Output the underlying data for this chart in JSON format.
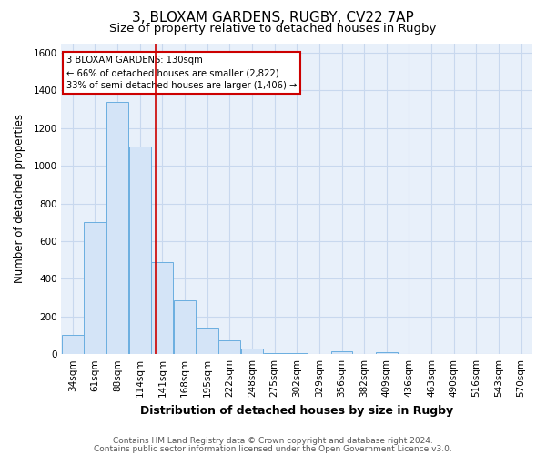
{
  "title1": "3, BLOXAM GARDENS, RUGBY, CV22 7AP",
  "title2": "Size of property relative to detached houses in Rugby",
  "xlabel": "Distribution of detached houses by size in Rugby",
  "ylabel": "Number of detached properties",
  "bin_labels": [
    "34sqm",
    "61sqm",
    "88sqm",
    "114sqm",
    "141sqm",
    "168sqm",
    "195sqm",
    "222sqm",
    "248sqm",
    "275sqm",
    "302sqm",
    "329sqm",
    "356sqm",
    "382sqm",
    "409sqm",
    "436sqm",
    "463sqm",
    "490sqm",
    "516sqm",
    "543sqm",
    "570sqm"
  ],
  "bar_heights": [
    100,
    700,
    1340,
    1100,
    490,
    285,
    140,
    75,
    30,
    5,
    5,
    0,
    15,
    0,
    10,
    0,
    0,
    0,
    0,
    0,
    0
  ],
  "bar_color": "#d4e4f7",
  "bar_edge_color": "#6aaee0",
  "plot_bg_color": "#e8f0fa",
  "ylim": [
    0,
    1650
  ],
  "yticks": [
    0,
    200,
    400,
    600,
    800,
    1000,
    1200,
    1400,
    1600
  ],
  "annotation_title": "3 BLOXAM GARDENS: 130sqm",
  "annotation_line1": "← 66% of detached houses are smaller (2,822)",
  "annotation_line2": "33% of semi-detached houses are larger (1,406) →",
  "annotation_box_color": "#ffffff",
  "annotation_box_edge_color": "#cc0000",
  "property_line_x": 3.7,
  "footer_line1": "Contains HM Land Registry data © Crown copyright and database right 2024.",
  "footer_line2": "Contains public sector information licensed under the Open Government Licence v3.0.",
  "background_color": "#ffffff",
  "grid_color": "#c8d8ee",
  "title1_fontsize": 11,
  "title2_fontsize": 9.5,
  "xlabel_fontsize": 9,
  "ylabel_fontsize": 8.5,
  "tick_fontsize": 7.5,
  "footer_fontsize": 6.5
}
